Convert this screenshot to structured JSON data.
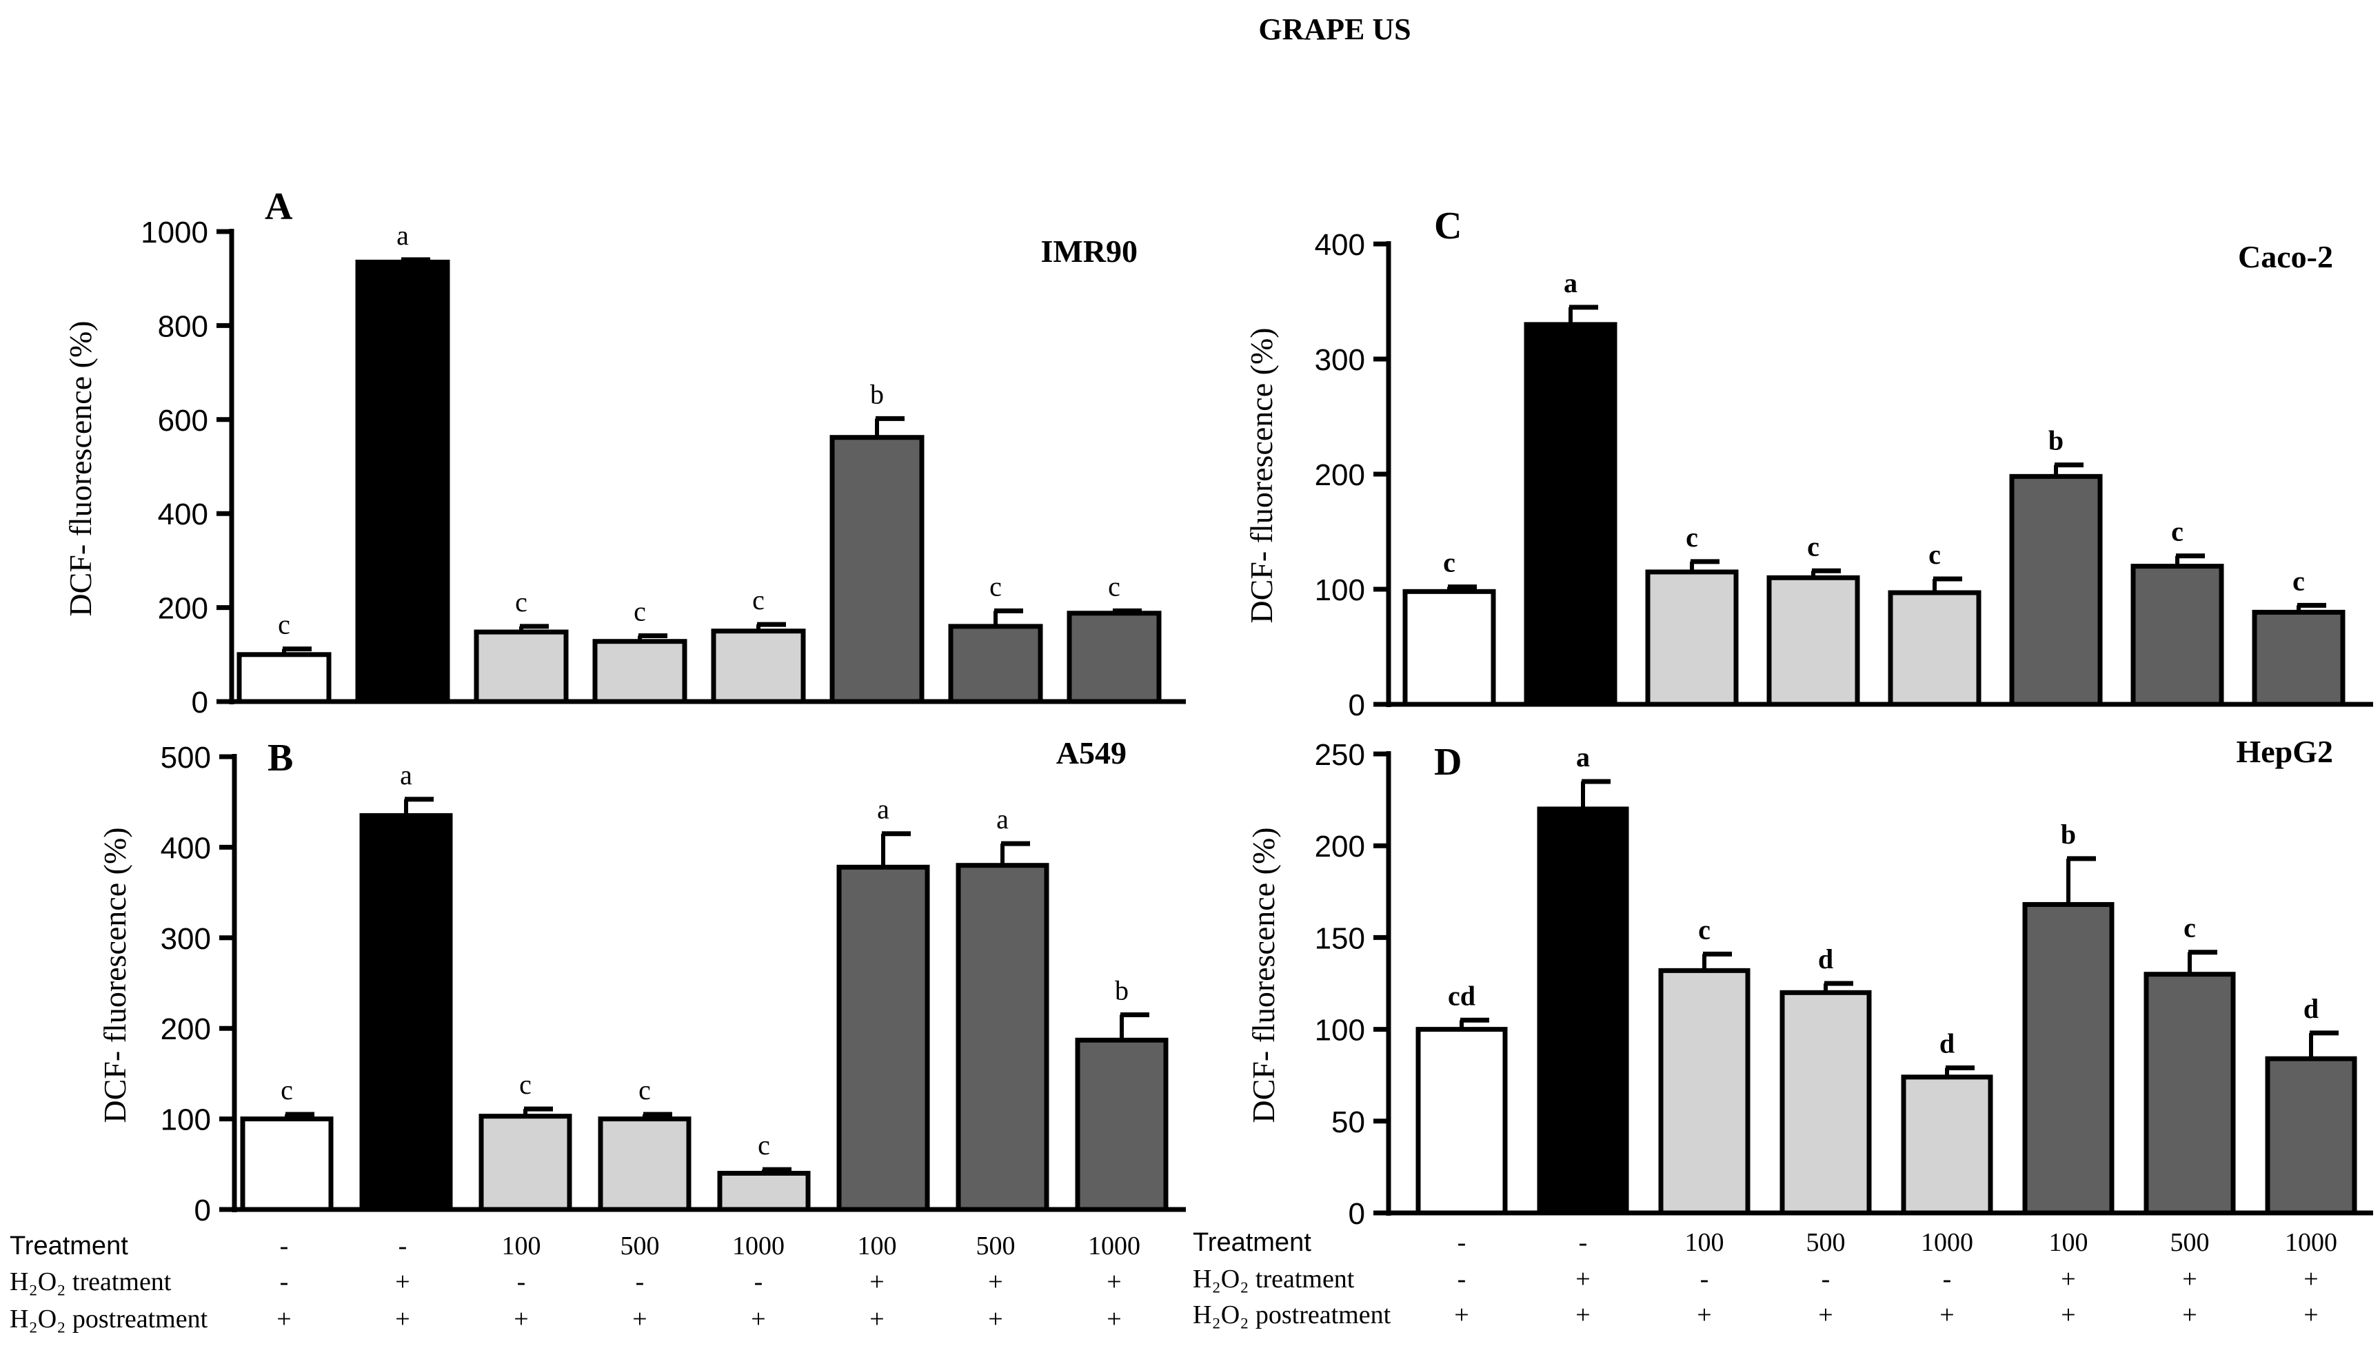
{
  "figure_title": "GRAPE US",
  "chart_data": [
    {
      "type": "bar",
      "panel": "A",
      "cell_line": "IMR90",
      "ylabel": "DCF- fluorescence (%)",
      "ylim": [
        0,
        1000
      ],
      "yticks": [
        0,
        200,
        400,
        600,
        800,
        1000
      ],
      "values": [
        100,
        935,
        148,
        128,
        150,
        562,
        160,
        188
      ],
      "errors": [
        12,
        5,
        12,
        12,
        14,
        40,
        33,
        5
      ],
      "letters": [
        "c",
        "a",
        "c",
        "c",
        "c",
        "b",
        "c",
        "c"
      ],
      "fills": [
        "#ffffff",
        "#000000",
        "#d3d3d3",
        "#d3d3d3",
        "#d3d3d3",
        "#606060",
        "#606060",
        "#606060"
      ],
      "letter_style": "normal"
    },
    {
      "type": "bar",
      "panel": "B",
      "cell_line": "A549",
      "ylabel": "DCF- fluorescence (%)",
      "ylim": [
        0,
        500
      ],
      "yticks": [
        0,
        100,
        200,
        300,
        400,
        500
      ],
      "values": [
        100,
        435,
        103,
        100,
        40,
        378,
        380,
        187
      ],
      "errors": [
        5,
        18,
        8,
        5,
        4,
        37,
        24,
        28
      ],
      "letters": [
        "c",
        "a",
        "c",
        "c",
        "c",
        "a",
        "a",
        "b"
      ],
      "fills": [
        "#ffffff",
        "#000000",
        "#d3d3d3",
        "#d3d3d3",
        "#d3d3d3",
        "#606060",
        "#606060",
        "#606060"
      ],
      "letter_style": "normal"
    },
    {
      "type": "bar",
      "panel": "C",
      "cell_line": "Caco-2",
      "ylabel": "DCF- fluorescence (%)",
      "ylim": [
        0,
        400
      ],
      "yticks": [
        0,
        100,
        200,
        300,
        400
      ],
      "values": [
        98,
        330,
        115,
        110,
        97,
        198,
        120,
        80
      ],
      "errors": [
        4,
        15,
        9,
        6,
        12,
        10,
        9,
        6
      ],
      "letters": [
        "c",
        "a",
        "c",
        "c",
        "c",
        "b",
        "c",
        "c"
      ],
      "fills": [
        "#ffffff",
        "#000000",
        "#d3d3d3",
        "#d3d3d3",
        "#d3d3d3",
        "#606060",
        "#606060",
        "#606060"
      ],
      "letter_style": "bold"
    },
    {
      "type": "bar",
      "panel": "D",
      "cell_line": "HepG2",
      "ylabel": "DCF- fluorescence (%)",
      "ylim": [
        0,
        250
      ],
      "yticks": [
        0,
        50,
        100,
        150,
        200,
        250
      ],
      "values": [
        100,
        220,
        132,
        120,
        74,
        168,
        130,
        84
      ],
      "errors": [
        5,
        15,
        9,
        5,
        5,
        25,
        12,
        14
      ],
      "letters": [
        "cd",
        "a",
        "c",
        "d",
        "d",
        "b",
        "c",
        "d"
      ],
      "fills": [
        "#ffffff",
        "#000000",
        "#d3d3d3",
        "#d3d3d3",
        "#d3d3d3",
        "#606060",
        "#606060",
        "#606060"
      ],
      "letter_style": "bold"
    }
  ],
  "conditions": {
    "row_labels": [
      "Treatment",
      "H₂O₂ treatment",
      "H₂O₂ postreatment"
    ],
    "treatment": [
      "-",
      "-",
      "100",
      "500",
      "1000",
      "100",
      "500",
      "1000"
    ],
    "h2o2_treatment": [
      "-",
      "+",
      "-",
      "-",
      "-",
      "+",
      "+",
      "+"
    ],
    "h2o2_postreatment": [
      "+",
      "+",
      "+",
      "+",
      "+",
      "+",
      "+",
      "+"
    ]
  }
}
